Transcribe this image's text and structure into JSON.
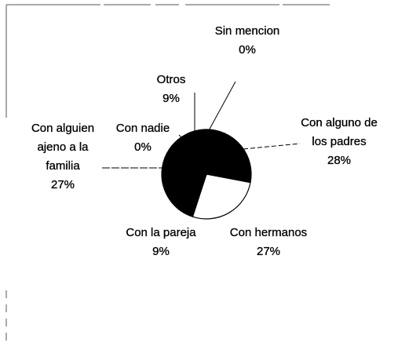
{
  "chart_data": {
    "type": "pie",
    "categories": [
      "Sin mencion",
      "Con alguno de los padres",
      "Con hermanos",
      "Con la pareja",
      "Con alguien ajeno a la familia",
      "Con nadie",
      "Otros"
    ],
    "values": [
      0,
      28,
      27,
      9,
      27,
      0,
      9
    ],
    "value_labels": [
      "0%",
      "28%",
      "27%",
      "9%",
      "27%",
      "0%",
      "9%"
    ],
    "colors": [
      "#000000",
      "#000000",
      "#ffffff",
      "#000000",
      "#000000",
      "#000000",
      "#000000"
    ]
  }
}
